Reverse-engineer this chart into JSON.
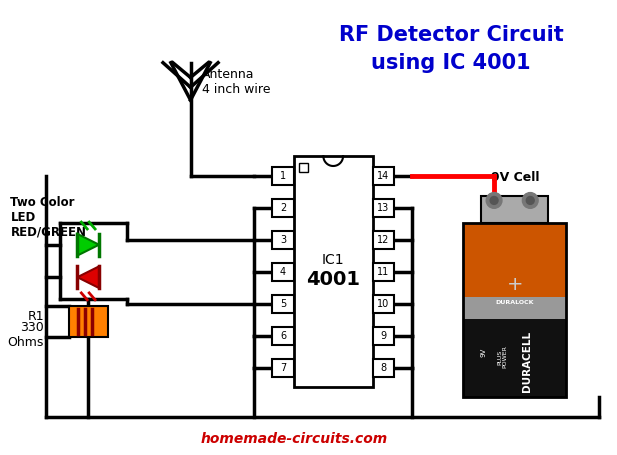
{
  "title_line1": "RF Detector Circuit",
  "title_line2": "using IC 4001",
  "title_color": "#0000CC",
  "title_fontsize": 15,
  "antenna_label": "Antenna\n4 inch wire",
  "two_color_label": "Two Color\nLED\nRED/GREEN",
  "r1_label": "R1",
  "r1_value": "330\nOhms",
  "ic_label1": "IC1",
  "ic_label2": "4001",
  "cell_label": "9V Cell",
  "website": "homemade-circuits.com",
  "website_color": "#CC0000",
  "bg_color": "#FFFFFF",
  "battery_body_color": "#CC5500",
  "battery_black_color": "#111111",
  "battery_gray_color": "#888888"
}
